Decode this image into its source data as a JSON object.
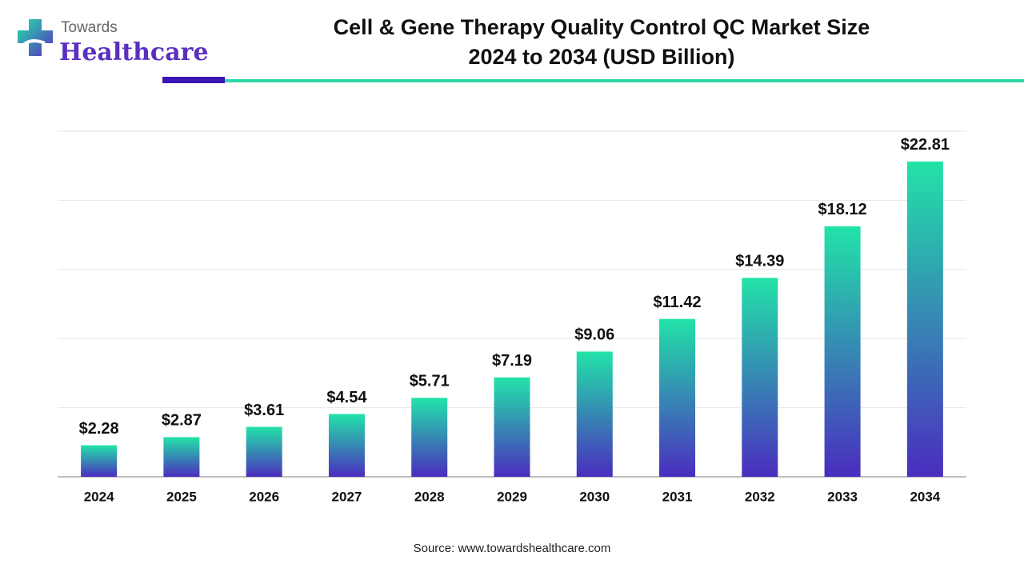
{
  "logo": {
    "line1": "Towards",
    "line2": "Healthcare"
  },
  "chart_data": {
    "type": "bar",
    "title_lines": [
      "Cell & Gene Therapy Quality Control QC Market Size",
      "2024 to 2034 (USD Billion)"
    ],
    "categories": [
      "2024",
      "2025",
      "2026",
      "2027",
      "2028",
      "2029",
      "2030",
      "2031",
      "2032",
      "2033",
      "2034"
    ],
    "values": [
      2.28,
      2.87,
      3.61,
      4.54,
      5.71,
      7.19,
      9.06,
      11.42,
      14.39,
      18.12,
      22.81
    ],
    "value_labels": [
      "$2.28",
      "$2.87",
      "$3.61",
      "$4.54",
      "$5.71",
      "$7.19",
      "$9.06",
      "$11.42",
      "$14.39",
      "$18.12",
      "$22.81"
    ],
    "color_top": "#22e3a8",
    "color_bottom": "#4a2dbf",
    "ylim": [
      0,
      25
    ],
    "yticks": [
      0,
      5,
      10,
      15,
      20,
      25
    ],
    "grid": true,
    "ytick_labels_shown": false,
    "source": "Source: www.towardshealthcare.com"
  }
}
